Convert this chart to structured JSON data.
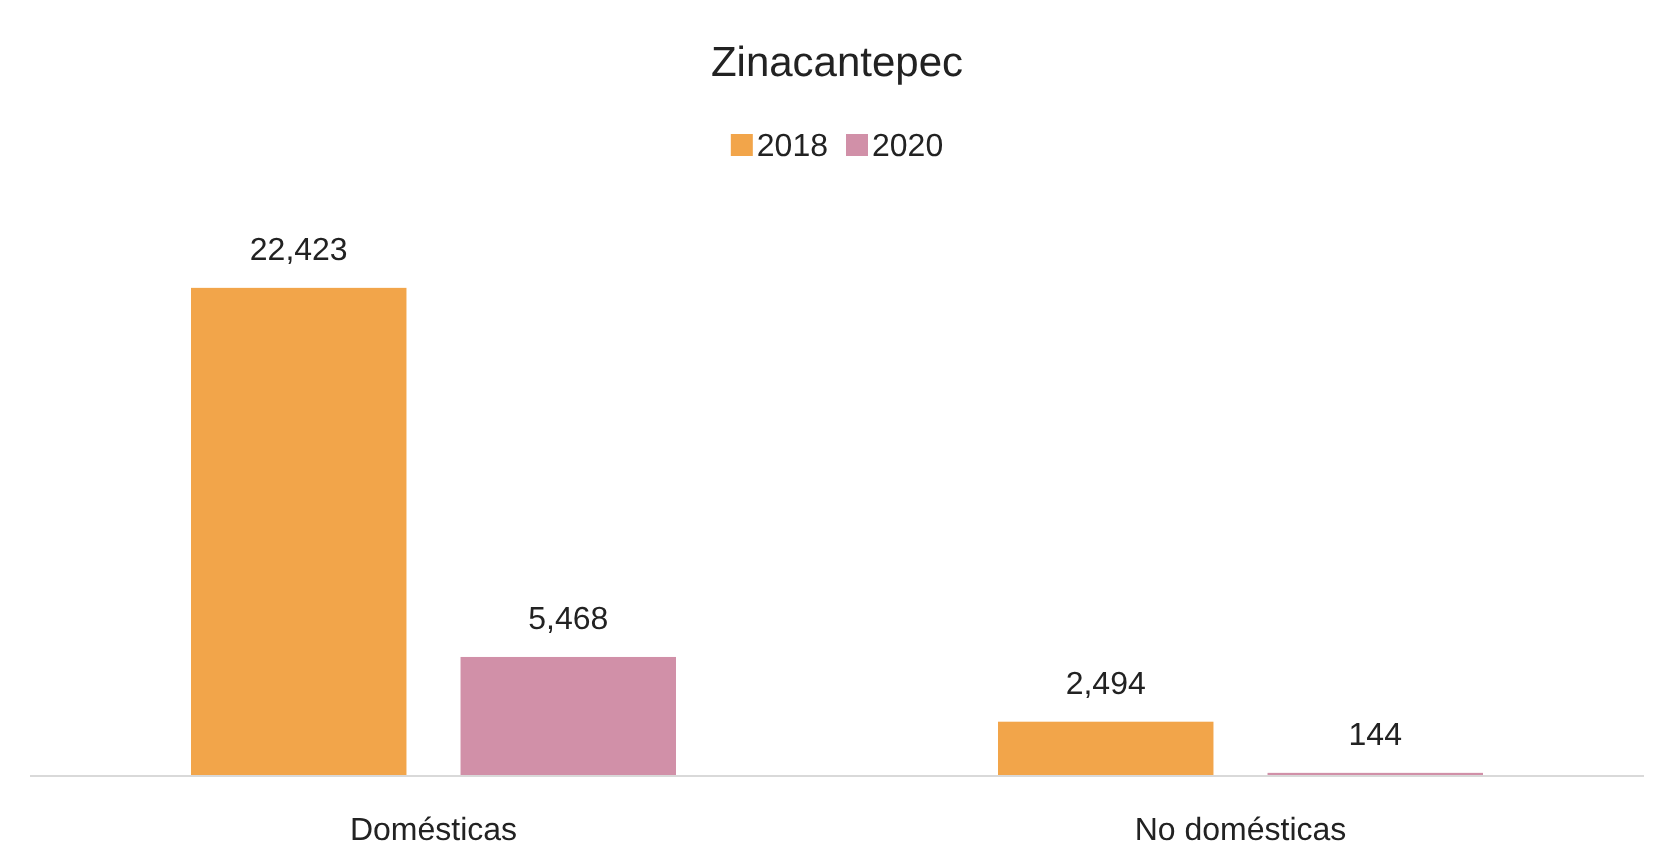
{
  "chart_data": {
    "type": "bar",
    "title": "Zinacantepec",
    "categories": [
      "Domésticas",
      "No domésticas"
    ],
    "series": [
      {
        "name": "2018",
        "color": "#f2a54a",
        "values": [
          22423,
          2494
        ],
        "value_labels": [
          "22,423",
          "2,494"
        ]
      },
      {
        "name": "2020",
        "color": "#d190a8",
        "values": [
          5468,
          144
        ],
        "value_labels": [
          "5,468",
          "144"
        ]
      }
    ],
    "legend": "top"
  }
}
